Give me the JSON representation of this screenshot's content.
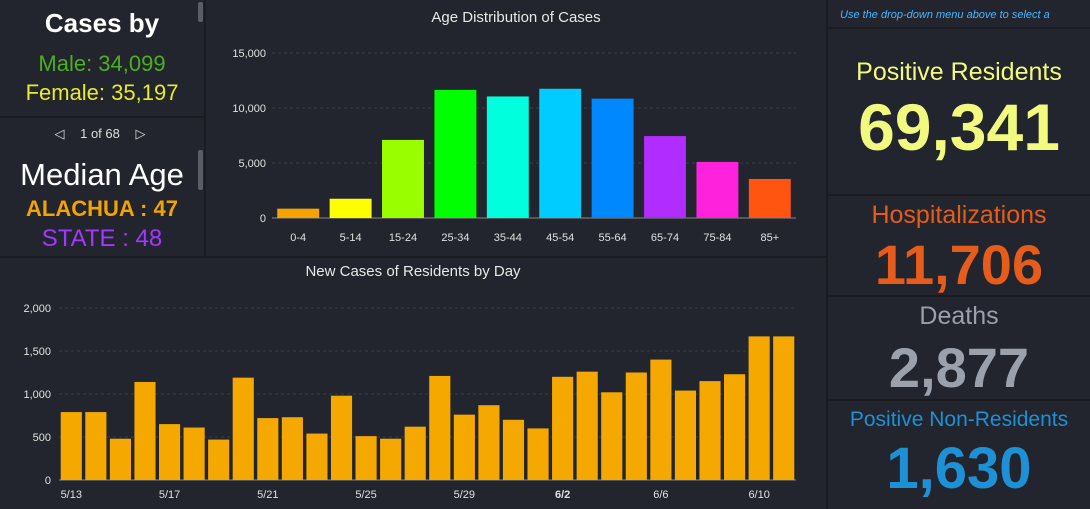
{
  "cases_by": {
    "title": "Cases by",
    "male": "Male: 34,099",
    "female": "Female: 35,197"
  },
  "median": {
    "pager_text": "1 of 68",
    "title": "Median Age",
    "county": "ALACHUA : 47",
    "state": "STATE : 48"
  },
  "hint": "Use the drop-down menu above to select a",
  "stats": {
    "positive_label": "Positive Residents",
    "positive_value": "69,341",
    "hosp_label": "Hospitalizations",
    "hosp_value": "11,706",
    "deaths_label": "Deaths",
    "deaths_value": "2,877",
    "nonres_label": "Positive Non-Residents",
    "nonres_value": "1,630"
  },
  "colors": {
    "male": "#4caf1e",
    "female": "#e8ea2a",
    "county": "#f5a300",
    "state": "#a238ff",
    "positive": "#f2f97f",
    "hosp": "#e65c1a",
    "deaths": "#9aa0ac",
    "nonres": "#1e90d6",
    "daily_bar": "#f5a800"
  },
  "chart_data": [
    {
      "type": "bar",
      "title": "Age Distribution of Cases",
      "categories": [
        "0-4",
        "5-14",
        "15-24",
        "25-34",
        "35-44",
        "45-54",
        "55-64",
        "65-74",
        "75-84",
        "85+"
      ],
      "values": [
        850,
        1750,
        7100,
        11650,
        11050,
        11750,
        10850,
        7450,
        5100,
        3550
      ],
      "colors": [
        "#f5a300",
        "#ffff00",
        "#99ff00",
        "#00ff00",
        "#00ffdd",
        "#00ccff",
        "#0088ff",
        "#b02cff",
        "#ff22dd",
        "#ff5511"
      ],
      "yticks": [
        "0",
        "5,000",
        "10,000",
        "15,000"
      ],
      "ylim": [
        0,
        15000
      ]
    },
    {
      "type": "bar",
      "title": "New Cases of Residents by Day",
      "x": [
        "5/13",
        "5/14",
        "5/15",
        "5/16",
        "5/17",
        "5/18",
        "5/19",
        "5/20",
        "5/21",
        "5/22",
        "5/23",
        "5/24",
        "5/25",
        "5/26",
        "5/27",
        "5/28",
        "5/29",
        "5/30",
        "5/31",
        "6/1",
        "6/2",
        "6/3",
        "6/4",
        "6/5",
        "6/6",
        "6/7",
        "6/8",
        "6/9",
        "6/10",
        "6/11"
      ],
      "values": [
        790,
        790,
        480,
        1140,
        650,
        610,
        470,
        1190,
        720,
        730,
        540,
        980,
        510,
        480,
        620,
        1210,
        760,
        870,
        700,
        600,
        1200,
        1260,
        1020,
        1250,
        1400,
        1040,
        1150,
        1230,
        1670,
        1670
      ],
      "tick_labels": [
        "5/13",
        "5/17",
        "5/21",
        "5/25",
        "5/29",
        "6/2",
        "6/6",
        "6/10"
      ],
      "yticks": [
        "0",
        "500",
        "1,000",
        "1,500",
        "2,000"
      ],
      "ylim": [
        0,
        2000
      ]
    }
  ]
}
